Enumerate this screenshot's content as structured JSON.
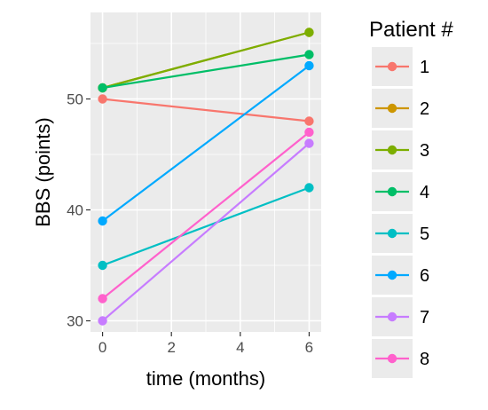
{
  "chart_data": {
    "type": "line",
    "xlabel": "time (months)",
    "ylabel": "BBS (points)",
    "x": [
      0,
      6
    ],
    "xlim": [
      -0.35,
      6.35
    ],
    "ylim": [
      29,
      57.8
    ],
    "xticks": [
      0,
      2,
      4,
      6
    ],
    "yticks": [
      30,
      40,
      50
    ],
    "grid": true,
    "legend": {
      "title": "Patient #",
      "placement": "right"
    },
    "series": [
      {
        "name": "1",
        "color": "#F8766D",
        "values": [
          50,
          48
        ]
      },
      {
        "name": "2",
        "color": "#CD9600",
        "values": [
          51,
          56
        ]
      },
      {
        "name": "3",
        "color": "#7CAE00",
        "values": [
          51,
          56
        ]
      },
      {
        "name": "4",
        "color": "#00BE67",
        "values": [
          51,
          54
        ]
      },
      {
        "name": "5",
        "color": "#00BFC4",
        "values": [
          35,
          42
        ]
      },
      {
        "name": "6",
        "color": "#00A9FF",
        "values": [
          39,
          53
        ]
      },
      {
        "name": "7",
        "color": "#C77CFF",
        "values": [
          30,
          46
        ]
      },
      {
        "name": "8",
        "color": "#FF61CC",
        "values": [
          32,
          47
        ]
      }
    ]
  }
}
